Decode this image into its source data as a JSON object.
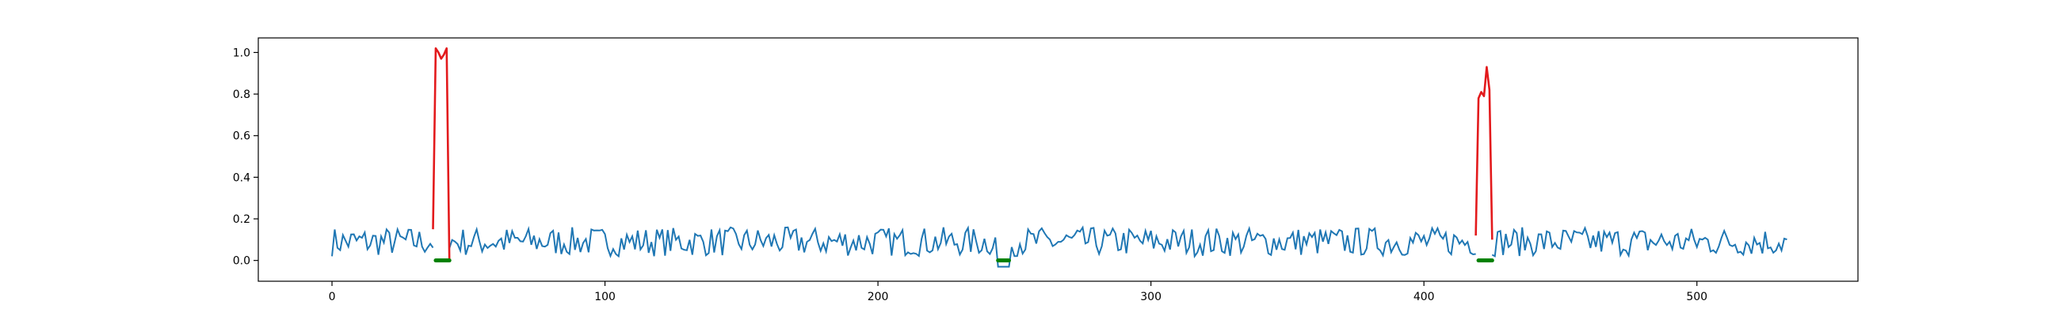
{
  "chart_data": {
    "type": "line",
    "title": "",
    "xlabel": "",
    "ylabel": "",
    "xlim": [
      -27,
      559
    ],
    "ylim": [
      -0.1,
      1.07
    ],
    "grid": false,
    "x_ticks": [
      0,
      100,
      200,
      300,
      400,
      500
    ],
    "x_tick_labels": [
      "0",
      "100",
      "200",
      "300",
      "400",
      "500"
    ],
    "y_ticks": [
      0.0,
      0.2,
      0.4,
      0.6,
      0.8,
      1.0
    ],
    "y_tick_labels": [
      "0.0",
      "0.2",
      "0.4",
      "0.6",
      "0.8",
      "1.0"
    ],
    "n_points": 534,
    "noise_seed": 7,
    "series": [
      {
        "role": "signal",
        "color": "#1f77b4",
        "x_range": [
          0,
          533
        ],
        "baseline_mean": 0.09,
        "baseline_amplitude": 0.07,
        "dips": [
          {
            "x_range": [
              244,
              248
            ],
            "value": -0.03
          }
        ]
      },
      {
        "role": "anomaly-segment",
        "color": "#e31a1c",
        "points": [
          {
            "x": 37,
            "y": 0.15
          },
          {
            "x": 38,
            "y": 1.02
          },
          {
            "x": 39,
            "y": 1.0
          },
          {
            "x": 40,
            "y": 0.97
          },
          {
            "x": 41,
            "y": 0.99
          },
          {
            "x": 42,
            "y": 1.02
          },
          {
            "x": 43,
            "y": 0.0
          }
        ]
      },
      {
        "role": "anomaly-segment",
        "color": "#e31a1c",
        "points": [
          {
            "x": 419,
            "y": 0.12
          },
          {
            "x": 420,
            "y": 0.78
          },
          {
            "x": 421,
            "y": 0.81
          },
          {
            "x": 422,
            "y": 0.79
          },
          {
            "x": 423,
            "y": 0.93
          },
          {
            "x": 424,
            "y": 0.82
          },
          {
            "x": 425,
            "y": 0.1
          }
        ]
      },
      {
        "role": "ground-truth-marker",
        "color": "#008000",
        "segments": [
          {
            "x_start": 38,
            "x_end": 43,
            "y": 0.0
          },
          {
            "x_start": 244,
            "x_end": 248,
            "y": 0.0
          },
          {
            "x_start": 420,
            "x_end": 425,
            "y": 0.0
          }
        ]
      }
    ]
  }
}
